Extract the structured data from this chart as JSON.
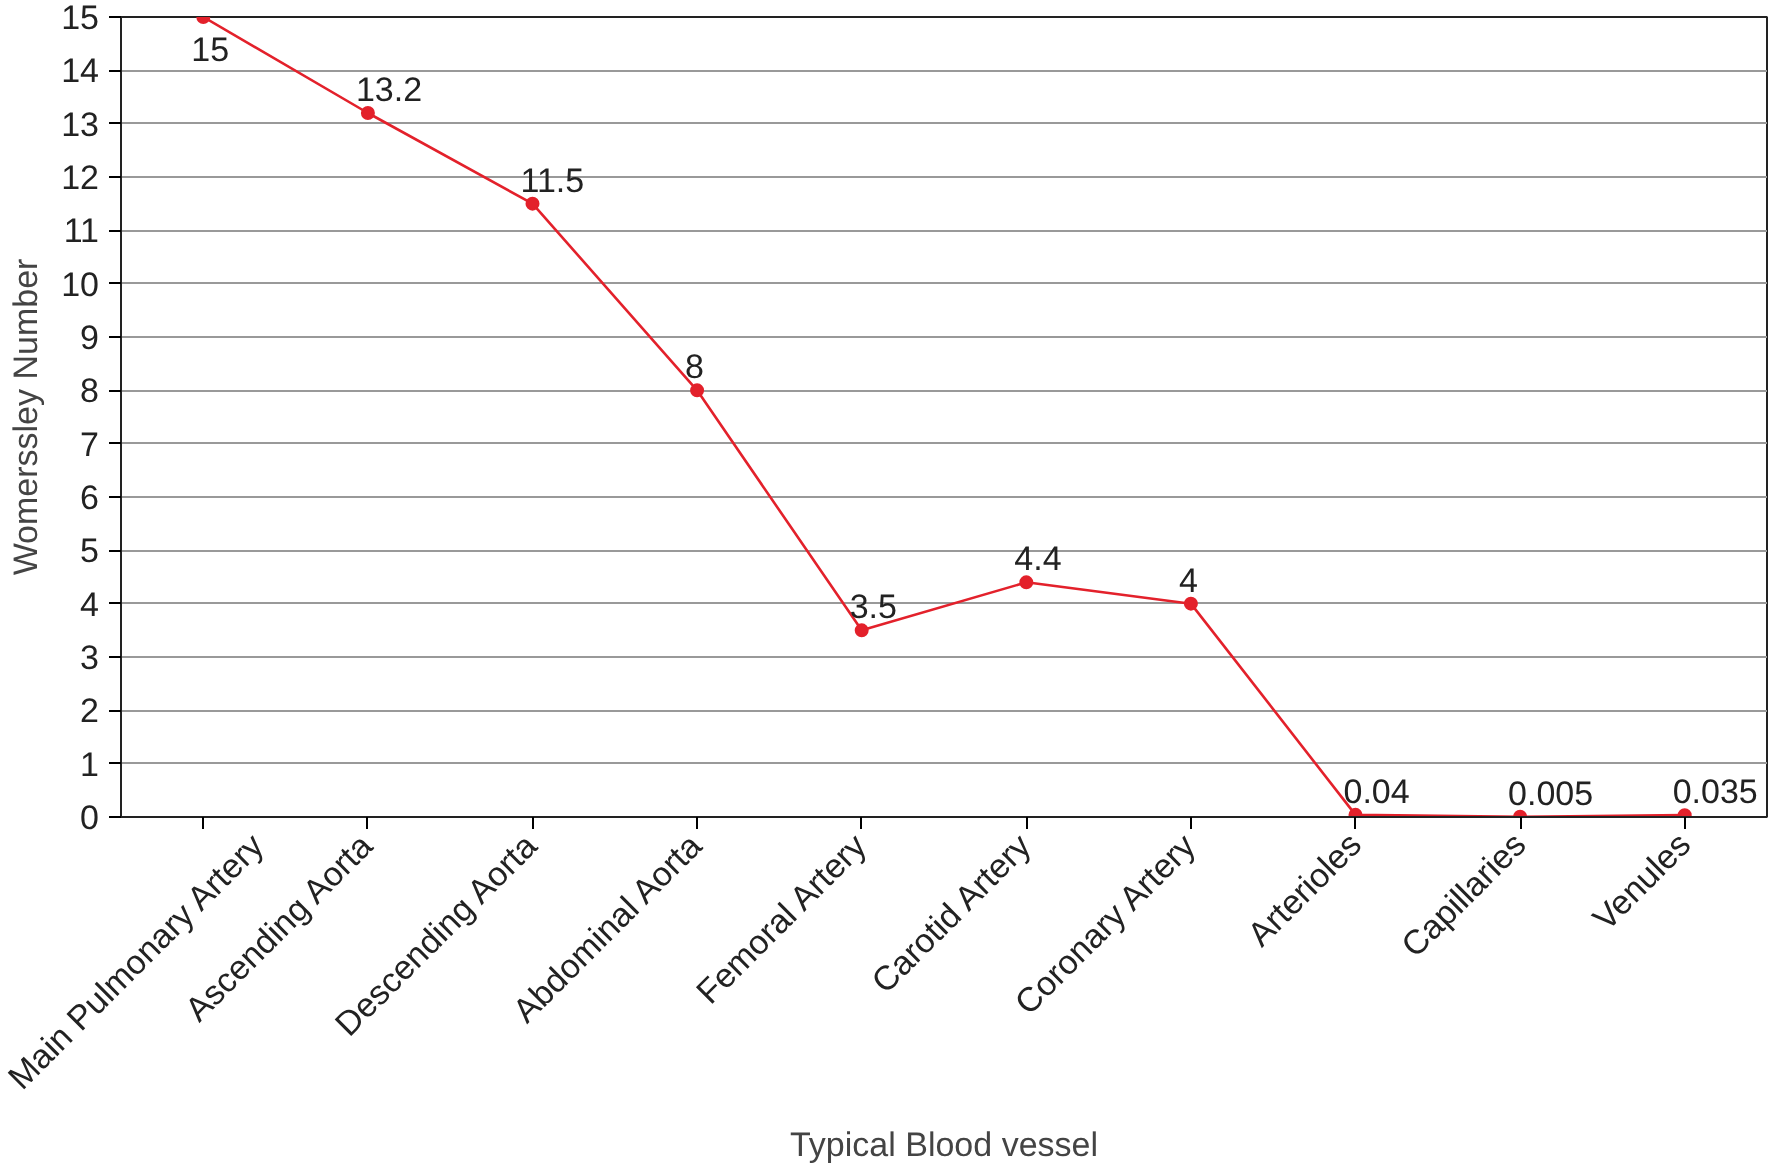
{
  "chart_data": {
    "type": "line",
    "xlabel": "Typical Blood vessel",
    "ylabel": "Womerssley Number",
    "categories": [
      "Main Pulmonary Artery",
      "Ascending Aorta",
      "Descending Aorta",
      "Abdominal Aorta",
      "Femoral Artery",
      "Carotid Artery",
      "Coronary Artery",
      "Arterioles",
      "Capillaries",
      "Venules"
    ],
    "series": [
      {
        "color": "#e3212b",
        "values": [
          15,
          13.2,
          11.5,
          8,
          3.5,
          4.4,
          4,
          0.04,
          0.005,
          0.035
        ]
      }
    ],
    "ylim": [
      0,
      15
    ],
    "yticks": [
      0,
      1,
      2,
      3,
      4,
      5,
      6,
      7,
      8,
      9,
      10,
      11,
      12,
      13,
      14,
      15
    ],
    "grid": "y",
    "marker": "circle",
    "line_style": "solid",
    "data_labels": true
  }
}
